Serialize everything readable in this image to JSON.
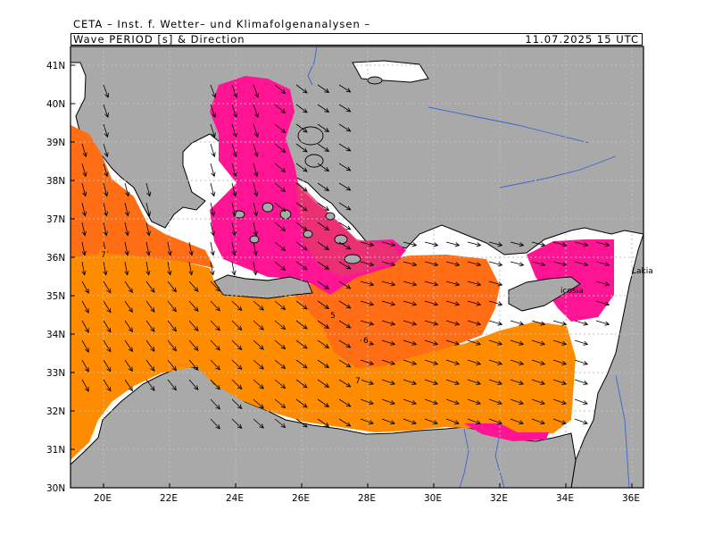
{
  "header": {
    "title": "CETA – Inst. f. Wetter– und Klimafolgenanalysen –",
    "subtitle_left": "Wave PERIOD [s] & Direction",
    "subtitle_right": "11.07.2025 15 UTC"
  },
  "map": {
    "lon_range": [
      19,
      36.4
    ],
    "lat_range": [
      30,
      41.6
    ],
    "lat_ticks": [
      "30N",
      "31N",
      "32N",
      "33N",
      "34N",
      "35N",
      "36N",
      "37N",
      "38N",
      "39N",
      "40N",
      "41N"
    ],
    "lon_ticks": [
      "20E",
      "22E",
      "24E",
      "26E",
      "28E",
      "30E",
      "32E",
      "34E",
      "36E"
    ],
    "contour_labels": [
      "7",
      "5",
      "6",
      "7"
    ],
    "place_labels": [
      "Lakia",
      "icosia"
    ],
    "colors": {
      "land": "#a9a9a9",
      "sea_no_data": "#ffffff",
      "period_5": "#ff6d14",
      "period_6": "#ff7f00",
      "period_7": "#ff8c00",
      "period_low": "#ff1493",
      "period_mid": "#e6366b",
      "arrow": "#000000",
      "rivers": "#3c64d2",
      "grid": "#c0c0c0"
    }
  }
}
